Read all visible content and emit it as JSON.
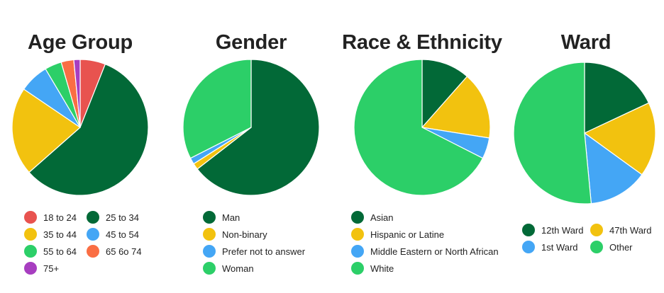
{
  "chart_data": [
    {
      "type": "pie",
      "title": "Age Group",
      "slices": [
        {
          "label": "18 to 24",
          "value": 6.0,
          "color": "#e8534f"
        },
        {
          "label": "25 to 34",
          "value": 57.5,
          "color": "#026937"
        },
        {
          "label": "35 to 44",
          "value": 21.0,
          "color": "#f2c20f"
        },
        {
          "label": "45 to 54",
          "value": 7.0,
          "color": "#44a6f5"
        },
        {
          "label": "55 to 64",
          "value": 4.0,
          "color": "#2ccf68"
        },
        {
          "label": "65 6o 74",
          "value": 3.0,
          "color": "#fa6e44"
        },
        {
          "label": "75+",
          "value": 1.5,
          "color": "#a73ec0"
        }
      ]
    },
    {
      "type": "pie",
      "title": "Gender",
      "slices": [
        {
          "label": "Man",
          "value": 64.5,
          "color": "#026937"
        },
        {
          "label": "Non-binary",
          "value": 1.5,
          "color": "#f2c20f"
        },
        {
          "label": "Prefer not to answer",
          "value": 1.5,
          "color": "#44a6f5"
        },
        {
          "label": "Woman",
          "value": 32.5,
          "color": "#2ccf68"
        }
      ]
    },
    {
      "type": "pie",
      "title": "Race & Ethnicity",
      "slices": [
        {
          "label": "Asian",
          "value": 11.5,
          "color": "#026937"
        },
        {
          "label": "Hispanic or Latine",
          "value": 16.0,
          "color": "#f2c20f"
        },
        {
          "label": "Middle Eastern or North African",
          "value": 5.0,
          "color": "#44a6f5"
        },
        {
          "label": "White",
          "value": 67.5,
          "color": "#2ccf68"
        }
      ]
    },
    {
      "type": "pie",
      "title": "Ward",
      "slices": [
        {
          "label": "12th Ward",
          "value": 18.0,
          "color": "#026937"
        },
        {
          "label": "47th Ward",
          "value": 17.0,
          "color": "#f2c20f"
        },
        {
          "label": "1st Ward",
          "value": 13.5,
          "color": "#44a6f5"
        },
        {
          "label": "Other",
          "value": 51.5,
          "color": "#2ccf68"
        }
      ]
    }
  ]
}
